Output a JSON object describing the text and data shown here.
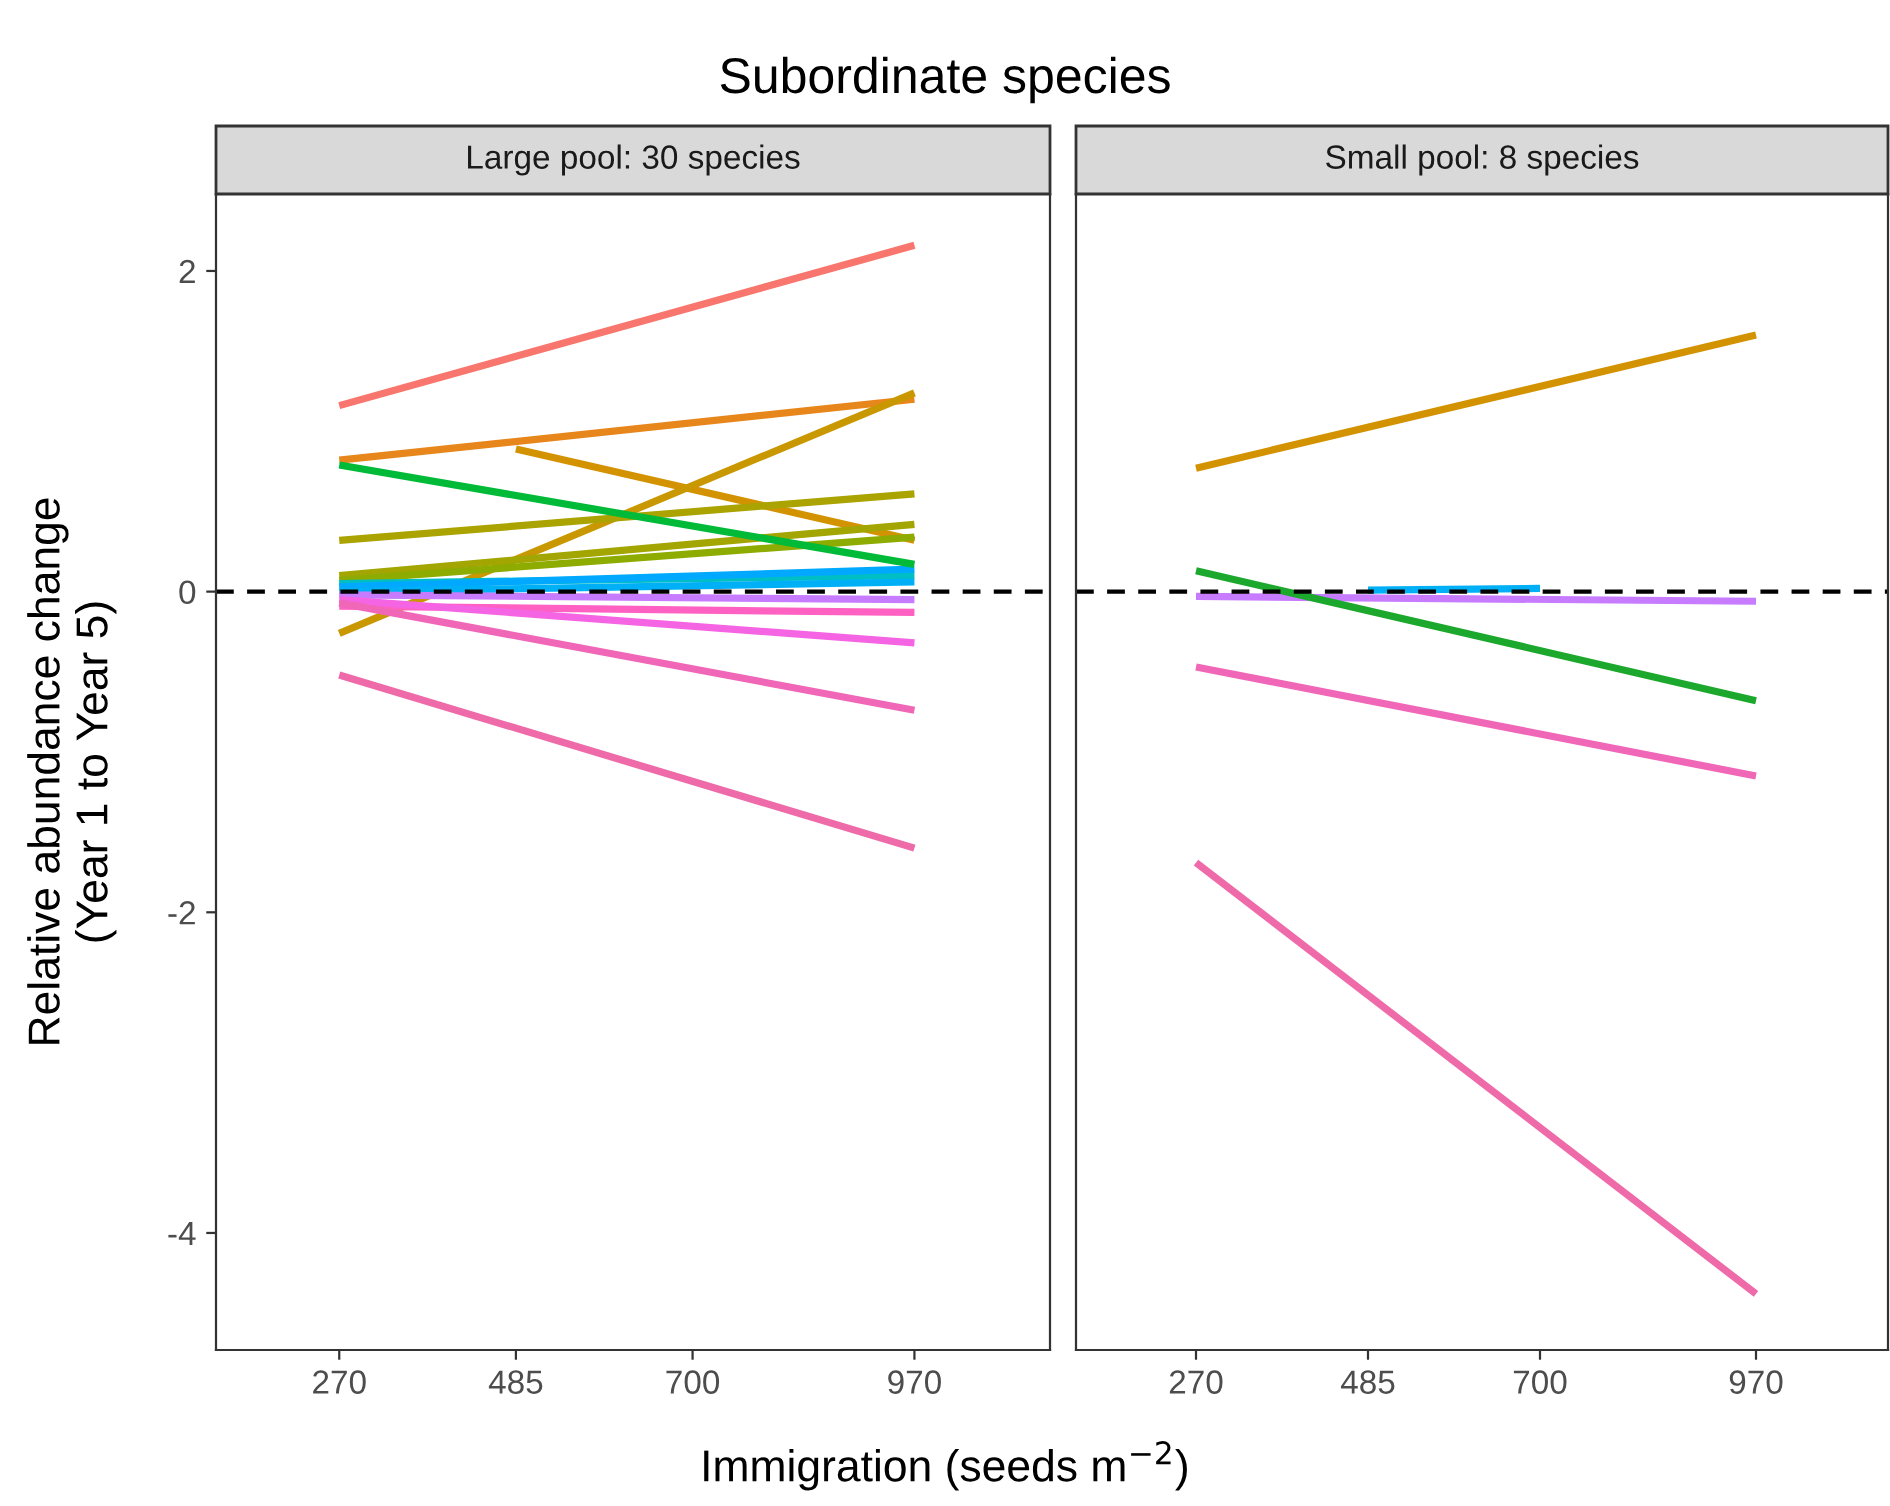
{
  "chart_data": [
    {
      "type": "line",
      "title": "Subordinate species",
      "subtitle": "Large pool: 30 species",
      "xlabel": "Immigration (seeds m$^{−2}$)",
      "ylabel": "Relative abundance change\n(Year 1 to Year 5)",
      "xlim": [
        120,
        1135
      ],
      "xticks": [
        270,
        485,
        700,
        970
      ],
      "ylim": [
        -4.73,
        2.48
      ],
      "yticks": [
        -4,
        -2,
        0,
        2
      ],
      "grid": false,
      "legend": false,
      "ref_lines": [
        {
          "axis": "y",
          "value": 0,
          "line_style": "dashed",
          "color": "#000000"
        }
      ],
      "series": [
        {
          "color": "#F8766D",
          "x": [
            270,
            970
          ],
          "values": [
            1.16,
            2.16
          ]
        },
        {
          "color": "#E7861B",
          "x": [
            270,
            970
          ],
          "values": [
            0.82,
            1.2
          ]
        },
        {
          "color": "#D39200",
          "x": [
            485,
            970
          ],
          "values": [
            0.89,
            0.32
          ]
        },
        {
          "color": "#C99800",
          "x": [
            270,
            970
          ],
          "values": [
            -0.26,
            1.24
          ]
        },
        {
          "color": "#ABA300",
          "x": [
            270,
            970
          ],
          "values": [
            0.32,
            0.61
          ]
        },
        {
          "color": "#A3A500",
          "x": [
            270,
            970
          ],
          "values": [
            0.1,
            0.42
          ]
        },
        {
          "color": "#8EAB00",
          "x": [
            270,
            970
          ],
          "values": [
            0.07,
            0.34
          ]
        },
        {
          "color": "#00BFC4",
          "x": [
            270,
            970
          ],
          "values": [
            0.05,
            0.1
          ]
        },
        {
          "color": "#00A9FF",
          "x": [
            270,
            970
          ],
          "values": [
            0.03,
            0.14
          ]
        },
        {
          "color": "#00B0F6",
          "x": [
            270,
            970
          ],
          "values": [
            0.0,
            0.06
          ]
        },
        {
          "color": "#C77CFF",
          "x": [
            270,
            970
          ],
          "values": [
            -0.02,
            -0.05
          ]
        },
        {
          "color": "#FF61C3",
          "x": [
            270,
            970
          ],
          "values": [
            -0.09,
            -0.13
          ]
        },
        {
          "color": "#F564E3",
          "x": [
            270,
            970
          ],
          "values": [
            -0.05,
            -0.32
          ]
        },
        {
          "color": "#F067B8",
          "x": [
            270,
            970
          ],
          "values": [
            -0.07,
            -0.74
          ]
        },
        {
          "color": "#00BA38",
          "x": [
            270,
            970
          ],
          "values": [
            0.79,
            0.17
          ]
        },
        {
          "color": "#EE6AA8",
          "x": [
            270,
            970
          ],
          "values": [
            -0.52,
            -1.6
          ]
        }
      ]
    },
    {
      "type": "line",
      "subtitle": "Small pool: 8 species",
      "tick_labels": "x",
      "xlim": [
        120,
        1135
      ],
      "xticks": [
        270,
        485,
        700,
        970
      ],
      "ylim": [
        -4.73,
        2.48
      ],
      "yticks": [
        -4,
        -2,
        0,
        2
      ],
      "grid": false,
      "legend": false,
      "ref_lines": [
        {
          "axis": "y",
          "value": 0,
          "line_style": "dashed",
          "color": "#000000"
        }
      ],
      "series": [
        {
          "color": "#D39200",
          "x": [
            270,
            970
          ],
          "values": [
            0.77,
            1.6
          ]
        },
        {
          "color": "#00B0F6",
          "x": [
            485,
            700
          ],
          "values": [
            0.01,
            0.02
          ]
        },
        {
          "color": "#C77CFF",
          "x": [
            270,
            970
          ],
          "values": [
            -0.03,
            -0.06
          ]
        },
        {
          "color": "#1BA82C",
          "x": [
            270,
            970
          ],
          "values": [
            0.13,
            -0.68
          ]
        },
        {
          "color": "#F067B8",
          "x": [
            270,
            970
          ],
          "values": [
            -0.47,
            -1.15
          ]
        },
        {
          "color": "#EE6AA8",
          "x": [
            270,
            970
          ],
          "values": [
            -1.69,
            -4.38
          ]
        }
      ]
    }
  ]
}
